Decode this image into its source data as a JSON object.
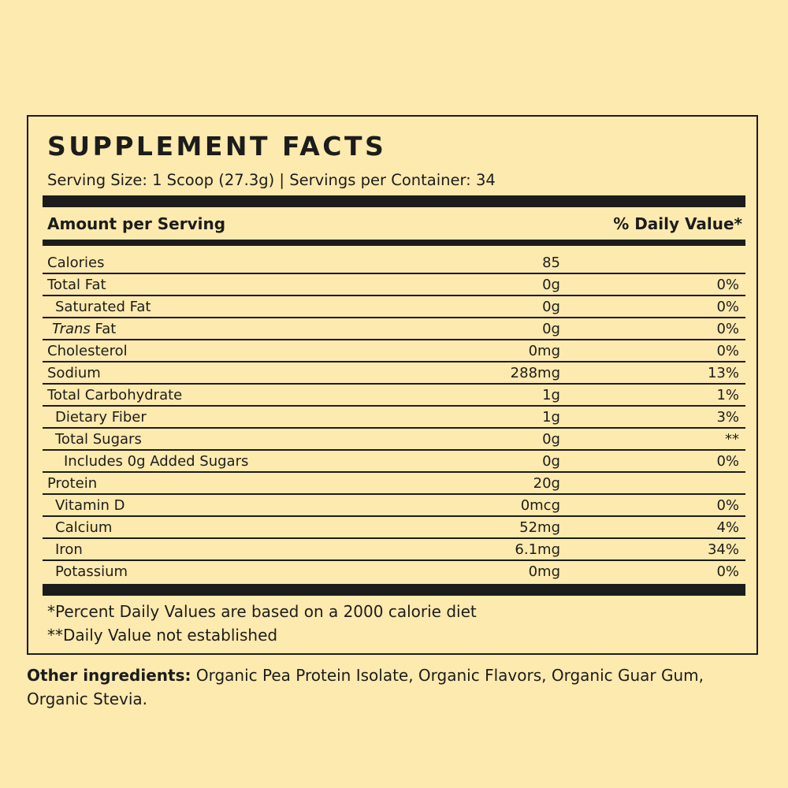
{
  "title": "SUPPLEMENT FACTS",
  "serving_info": "Serving Size: 1 Scoop (27.3g) | Servings per Container: 34",
  "header": {
    "amount_label": "Amount per Serving",
    "daily_value_label": "% Daily Value*"
  },
  "nutrients": [
    {
      "name": "Calories",
      "amount": "85",
      "dv": ""
    },
    {
      "name": "Total Fat",
      "amount": "0g",
      "dv": "0%"
    },
    {
      "name": "Saturated Fat",
      "amount": "0g",
      "dv": "0%"
    },
    {
      "name_italic": "Trans",
      "name_rest": " Fat",
      "amount": "0g",
      "dv": "0%"
    },
    {
      "name": "Cholesterol",
      "amount": "0mg",
      "dv": "0%"
    },
    {
      "name": "Sodium",
      "amount": "288mg",
      "dv": "13%"
    },
    {
      "name": "Total Carbohydrate",
      "amount": "1g",
      "dv": "1%"
    },
    {
      "name": "Dietary Fiber",
      "amount": "1g",
      "dv": "3%"
    },
    {
      "name": "Total Sugars",
      "amount": "0g",
      "dv": "**"
    },
    {
      "name": "Includes 0g Added Sugars",
      "amount": "0g",
      "dv": "0%"
    },
    {
      "name": "Protein",
      "amount": "20g",
      "dv": ""
    },
    {
      "name": "Vitamin D",
      "amount": "0mcg",
      "dv": "0%"
    },
    {
      "name": "Calcium",
      "amount": "52mg",
      "dv": "4%"
    },
    {
      "name": "Iron",
      "amount": "6.1mg",
      "dv": "34%"
    },
    {
      "name": "Potassium",
      "amount": "0mg",
      "dv": "0%"
    }
  ],
  "footnotes": {
    "percent_dv": "*Percent Daily Values are based on a 2000 calorie diet",
    "dv_not_established": "**Daily Value not established"
  },
  "other_ingredients": {
    "label": "Other ingredients:",
    "text": " Organic Pea Protein Isolate, Organic Flavors, Organic Guar Gum, Organic Stevia."
  }
}
